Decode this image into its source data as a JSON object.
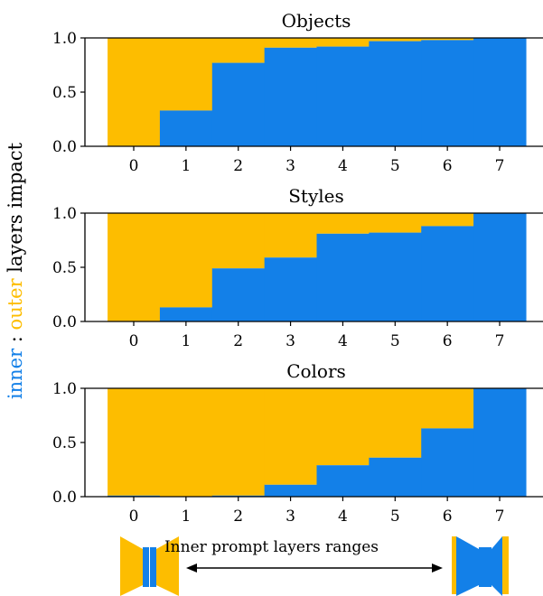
{
  "figure": {
    "ylabel_inner": "inner",
    "ylabel_sep": " : ",
    "ylabel_outer": "outer",
    "ylabel_rest": " layers impact",
    "bottom_label": "Inner prompt layers ranges",
    "colors": {
      "inner": "#1380e8",
      "outer": "#fdbd00",
      "axis": "#000000"
    },
    "icons": [
      "unet-outer-layers-icon",
      "unet-inner-layers-icon"
    ]
  },
  "chart_data": [
    {
      "type": "bar",
      "title": "Objects",
      "categories": [
        "0",
        "1",
        "2",
        "3",
        "4",
        "5",
        "6",
        "7"
      ],
      "series": [
        {
          "name": "inner",
          "values": [
            0.0,
            0.33,
            0.77,
            0.91,
            0.92,
            0.97,
            0.98,
            1.0
          ]
        }
      ],
      "ylim": [
        0,
        1
      ],
      "yticks": [
        "0.0",
        "0.5",
        "1.0"
      ],
      "stacked_remainder": "outer"
    },
    {
      "type": "bar",
      "title": "Styles",
      "categories": [
        "0",
        "1",
        "2",
        "3",
        "4",
        "5",
        "6",
        "7"
      ],
      "series": [
        {
          "name": "inner",
          "values": [
            0.0,
            0.13,
            0.49,
            0.59,
            0.81,
            0.82,
            0.88,
            1.0
          ]
        }
      ],
      "ylim": [
        0,
        1
      ],
      "yticks": [
        "0.0",
        "0.5",
        "1.0"
      ],
      "stacked_remainder": "outer"
    },
    {
      "type": "bar",
      "title": "Colors",
      "categories": [
        "0",
        "1",
        "2",
        "3",
        "4",
        "5",
        "6",
        "7"
      ],
      "series": [
        {
          "name": "inner",
          "values": [
            0.01,
            0.0,
            0.01,
            0.11,
            0.29,
            0.36,
            0.63,
            1.0
          ]
        }
      ],
      "ylim": [
        0,
        1
      ],
      "yticks": [
        "0.0",
        "0.5",
        "1.0"
      ],
      "stacked_remainder": "outer"
    }
  ]
}
